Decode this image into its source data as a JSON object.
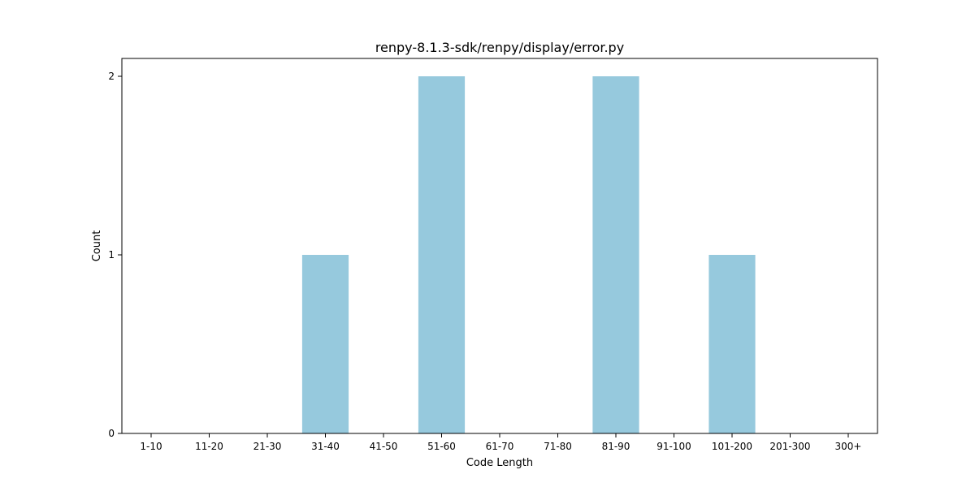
{
  "chart_data": {
    "type": "bar",
    "title": "renpy-8.1.3-sdk/renpy/display/error.py",
    "xlabel": "Code Length",
    "ylabel": "Count",
    "categories": [
      "1-10",
      "11-20",
      "21-30",
      "31-40",
      "41-50",
      "51-60",
      "61-70",
      "71-80",
      "81-90",
      "91-100",
      "101-200",
      "201-300",
      "300+"
    ],
    "values": [
      0,
      0,
      0,
      1,
      0,
      2,
      0,
      0,
      2,
      0,
      1,
      0,
      0
    ],
    "yticks": [
      0,
      1,
      2
    ],
    "ylim": [
      0,
      2.1
    ],
    "bar_color": "#96c9dd",
    "grid": false,
    "legend": "none"
  }
}
